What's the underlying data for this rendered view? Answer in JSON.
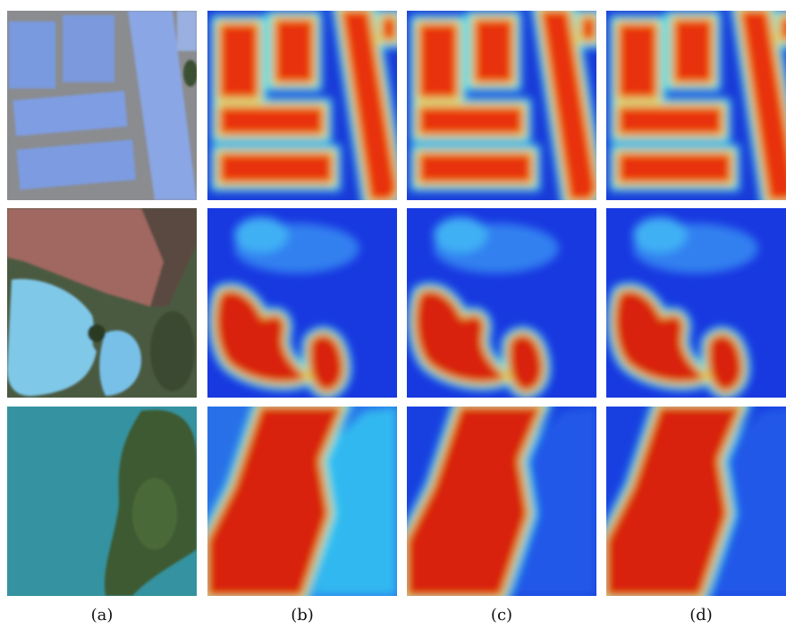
{
  "figure": {
    "labels": [
      "(a)",
      "(b)",
      "(c)",
      "(d)"
    ]
  }
}
